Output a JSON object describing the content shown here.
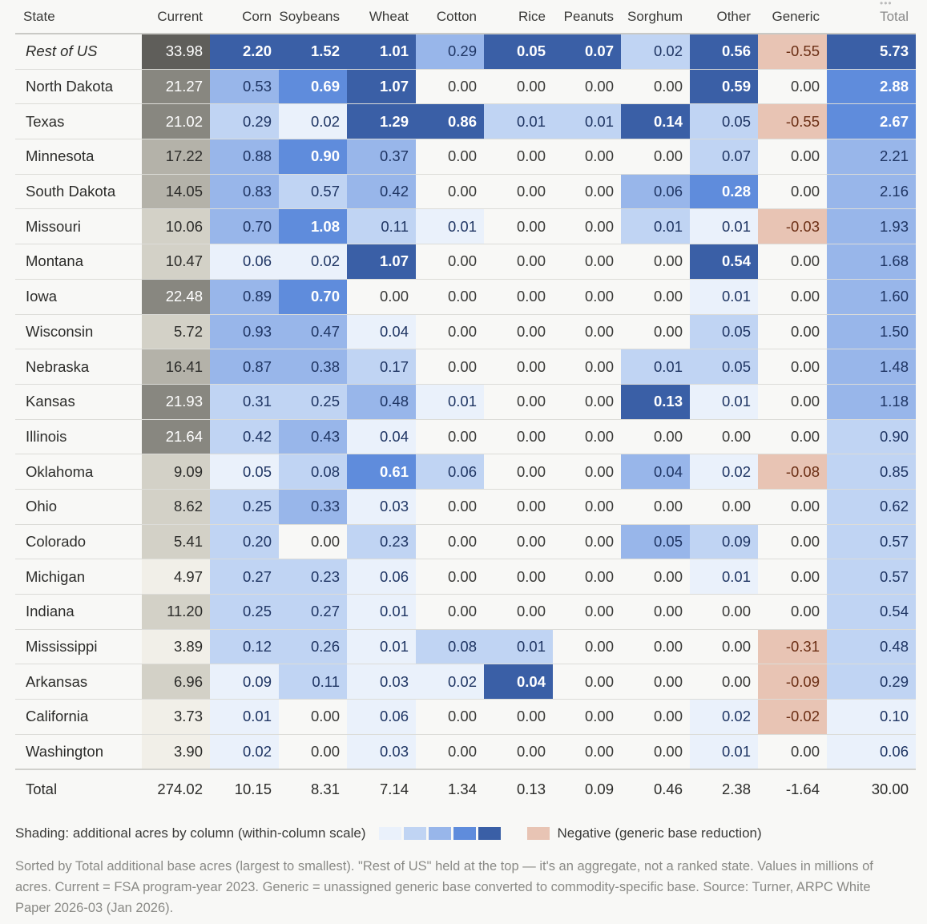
{
  "chart_data": {
    "type": "table",
    "columns": [
      "State",
      "Current",
      "Corn",
      "Soybeans",
      "Wheat",
      "Cotton",
      "Rice",
      "Peanuts",
      "Sorghum",
      "Other",
      "Generic",
      "Total"
    ],
    "rows": [
      {
        "state": "Rest of US",
        "italic": true,
        "current": "33.98",
        "cur_level": 5,
        "values": [
          "2.20",
          "1.52",
          "1.01",
          "0.29",
          "0.05",
          "0.07",
          "0.02",
          "0.56",
          "-0.55",
          "5.73"
        ],
        "levels": [
          5,
          5,
          5,
          3,
          5,
          5,
          2,
          5,
          -1,
          5
        ]
      },
      {
        "state": "North Dakota",
        "current": "21.27",
        "cur_level": 4,
        "values": [
          "0.53",
          "0.69",
          "1.07",
          "0.00",
          "0.00",
          "0.00",
          "0.00",
          "0.59",
          "0.00",
          "2.88"
        ],
        "levels": [
          3,
          4,
          5,
          0,
          0,
          0,
          0,
          5,
          0,
          4
        ]
      },
      {
        "state": "Texas",
        "current": "21.02",
        "cur_level": 4,
        "values": [
          "0.29",
          "0.02",
          "1.29",
          "0.86",
          "0.01",
          "0.01",
          "0.14",
          "0.05",
          "-0.55",
          "2.67"
        ],
        "levels": [
          2,
          1,
          5,
          5,
          2,
          2,
          5,
          2,
          -1,
          4
        ]
      },
      {
        "state": "Minnesota",
        "current": "17.22",
        "cur_level": 3,
        "values": [
          "0.88",
          "0.90",
          "0.37",
          "0.00",
          "0.00",
          "0.00",
          "0.00",
          "0.07",
          "0.00",
          "2.21"
        ],
        "levels": [
          3,
          4,
          3,
          0,
          0,
          0,
          0,
          2,
          0,
          3
        ]
      },
      {
        "state": "South Dakota",
        "current": "14.05",
        "cur_level": 3,
        "values": [
          "0.83",
          "0.57",
          "0.42",
          "0.00",
          "0.00",
          "0.00",
          "0.06",
          "0.28",
          "0.00",
          "2.16"
        ],
        "levels": [
          3,
          2,
          3,
          0,
          0,
          0,
          3,
          4,
          0,
          3
        ]
      },
      {
        "state": "Missouri",
        "current": "10.06",
        "cur_level": 2,
        "values": [
          "0.70",
          "1.08",
          "0.11",
          "0.01",
          "0.00",
          "0.00",
          "0.01",
          "0.01",
          "-0.03",
          "1.93"
        ],
        "levels": [
          3,
          4,
          2,
          1,
          0,
          0,
          2,
          1,
          -1,
          3
        ]
      },
      {
        "state": "Montana",
        "current": "10.47",
        "cur_level": 2,
        "values": [
          "0.06",
          "0.02",
          "1.07",
          "0.00",
          "0.00",
          "0.00",
          "0.00",
          "0.54",
          "0.00",
          "1.68"
        ],
        "levels": [
          1,
          1,
          5,
          0,
          0,
          0,
          0,
          5,
          0,
          3
        ]
      },
      {
        "state": "Iowa",
        "current": "22.48",
        "cur_level": 4,
        "values": [
          "0.89",
          "0.70",
          "0.00",
          "0.00",
          "0.00",
          "0.00",
          "0.00",
          "0.01",
          "0.00",
          "1.60"
        ],
        "levels": [
          3,
          4,
          0,
          0,
          0,
          0,
          0,
          1,
          0,
          3
        ]
      },
      {
        "state": "Wisconsin",
        "current": "5.72",
        "cur_level": 2,
        "values": [
          "0.93",
          "0.47",
          "0.04",
          "0.00",
          "0.00",
          "0.00",
          "0.00",
          "0.05",
          "0.00",
          "1.50"
        ],
        "levels": [
          3,
          3,
          1,
          0,
          0,
          0,
          0,
          2,
          0,
          3
        ]
      },
      {
        "state": "Nebraska",
        "current": "16.41",
        "cur_level": 3,
        "values": [
          "0.87",
          "0.38",
          "0.17",
          "0.00",
          "0.00",
          "0.00",
          "0.01",
          "0.05",
          "0.00",
          "1.48"
        ],
        "levels": [
          3,
          3,
          2,
          0,
          0,
          0,
          2,
          2,
          0,
          3
        ]
      },
      {
        "state": "Kansas",
        "current": "21.93",
        "cur_level": 4,
        "values": [
          "0.31",
          "0.25",
          "0.48",
          "0.01",
          "0.00",
          "0.00",
          "0.13",
          "0.01",
          "0.00",
          "1.18"
        ],
        "levels": [
          2,
          2,
          3,
          1,
          0,
          0,
          5,
          1,
          0,
          3
        ]
      },
      {
        "state": "Illinois",
        "current": "21.64",
        "cur_level": 4,
        "values": [
          "0.42",
          "0.43",
          "0.04",
          "0.00",
          "0.00",
          "0.00",
          "0.00",
          "0.00",
          "0.00",
          "0.90"
        ],
        "levels": [
          2,
          3,
          1,
          0,
          0,
          0,
          0,
          0,
          0,
          2
        ]
      },
      {
        "state": "Oklahoma",
        "current": "9.09",
        "cur_level": 2,
        "values": [
          "0.05",
          "0.08",
          "0.61",
          "0.06",
          "0.00",
          "0.00",
          "0.04",
          "0.02",
          "-0.08",
          "0.85"
        ],
        "levels": [
          1,
          2,
          4,
          2,
          0,
          0,
          3,
          1,
          -1,
          2
        ]
      },
      {
        "state": "Ohio",
        "current": "8.62",
        "cur_level": 2,
        "values": [
          "0.25",
          "0.33",
          "0.03",
          "0.00",
          "0.00",
          "0.00",
          "0.00",
          "0.00",
          "0.00",
          "0.62"
        ],
        "levels": [
          2,
          3,
          1,
          0,
          0,
          0,
          0,
          0,
          0,
          2
        ]
      },
      {
        "state": "Colorado",
        "current": "5.41",
        "cur_level": 2,
        "values": [
          "0.20",
          "0.00",
          "0.23",
          "0.00",
          "0.00",
          "0.00",
          "0.05",
          "0.09",
          "0.00",
          "0.57"
        ],
        "levels": [
          2,
          0,
          2,
          0,
          0,
          0,
          3,
          2,
          0,
          2
        ]
      },
      {
        "state": "Michigan",
        "current": "4.97",
        "cur_level": 1,
        "values": [
          "0.27",
          "0.23",
          "0.06",
          "0.00",
          "0.00",
          "0.00",
          "0.00",
          "0.01",
          "0.00",
          "0.57"
        ],
        "levels": [
          2,
          2,
          1,
          0,
          0,
          0,
          0,
          1,
          0,
          2
        ]
      },
      {
        "state": "Indiana",
        "current": "11.20",
        "cur_level": 2,
        "values": [
          "0.25",
          "0.27",
          "0.01",
          "0.00",
          "0.00",
          "0.00",
          "0.00",
          "0.00",
          "0.00",
          "0.54"
        ],
        "levels": [
          2,
          2,
          1,
          0,
          0,
          0,
          0,
          0,
          0,
          2
        ]
      },
      {
        "state": "Mississippi",
        "current": "3.89",
        "cur_level": 1,
        "values": [
          "0.12",
          "0.26",
          "0.01",
          "0.08",
          "0.01",
          "0.00",
          "0.00",
          "0.00",
          "-0.31",
          "0.48"
        ],
        "levels": [
          2,
          2,
          1,
          2,
          2,
          0,
          0,
          0,
          -1,
          2
        ]
      },
      {
        "state": "Arkansas",
        "current": "6.96",
        "cur_level": 2,
        "values": [
          "0.09",
          "0.11",
          "0.03",
          "0.02",
          "0.04",
          "0.00",
          "0.00",
          "0.00",
          "-0.09",
          "0.29"
        ],
        "levels": [
          1,
          2,
          1,
          1,
          5,
          0,
          0,
          0,
          -1,
          2
        ]
      },
      {
        "state": "California",
        "current": "3.73",
        "cur_level": 1,
        "values": [
          "0.01",
          "0.00",
          "0.06",
          "0.00",
          "0.00",
          "0.00",
          "0.00",
          "0.02",
          "-0.02",
          "0.10"
        ],
        "levels": [
          1,
          0,
          1,
          0,
          0,
          0,
          0,
          1,
          -1,
          1
        ]
      },
      {
        "state": "Washington",
        "current": "3.90",
        "cur_level": 1,
        "values": [
          "0.02",
          "0.00",
          "0.03",
          "0.00",
          "0.00",
          "0.00",
          "0.00",
          "0.01",
          "0.00",
          "0.06"
        ],
        "levels": [
          1,
          0,
          1,
          0,
          0,
          0,
          0,
          1,
          0,
          1
        ]
      }
    ],
    "totals": {
      "label": "Total",
      "values": [
        "274.02",
        "10.15",
        "8.31",
        "7.14",
        "1.34",
        "0.13",
        "0.09",
        "0.46",
        "2.38",
        "-1.64",
        "30.00"
      ]
    },
    "colors": {
      "blue": [
        "#f8f8f6",
        "#eaf1fb",
        "#c0d4f3",
        "#98b6ea",
        "#5f8cdc",
        "#3a5fa6"
      ],
      "gray": [
        "#f8f8f6",
        "#f1efe8",
        "#d3d1c7",
        "#b4b2a9",
        "#888780",
        "#5f5e5a"
      ],
      "negative": "#e8c4b4",
      "negative_text": "#6b2e14",
      "blue_text": "#1f3563"
    }
  },
  "legend": {
    "shading_label": "Shading: additional acres by column (within-column scale)",
    "negative_label": "Negative (generic base reduction)"
  },
  "note": "Sorted by Total additional base acres (largest to smallest). \"Rest of US\" held at the top — it's an aggregate, not a ranked state. Values in millions of acres. Current = FSA program-year 2023. Generic = unassigned generic base converted to commodity-specific base. Source: Turner, ARPC White Paper 2026-03 (Jan 2026)."
}
